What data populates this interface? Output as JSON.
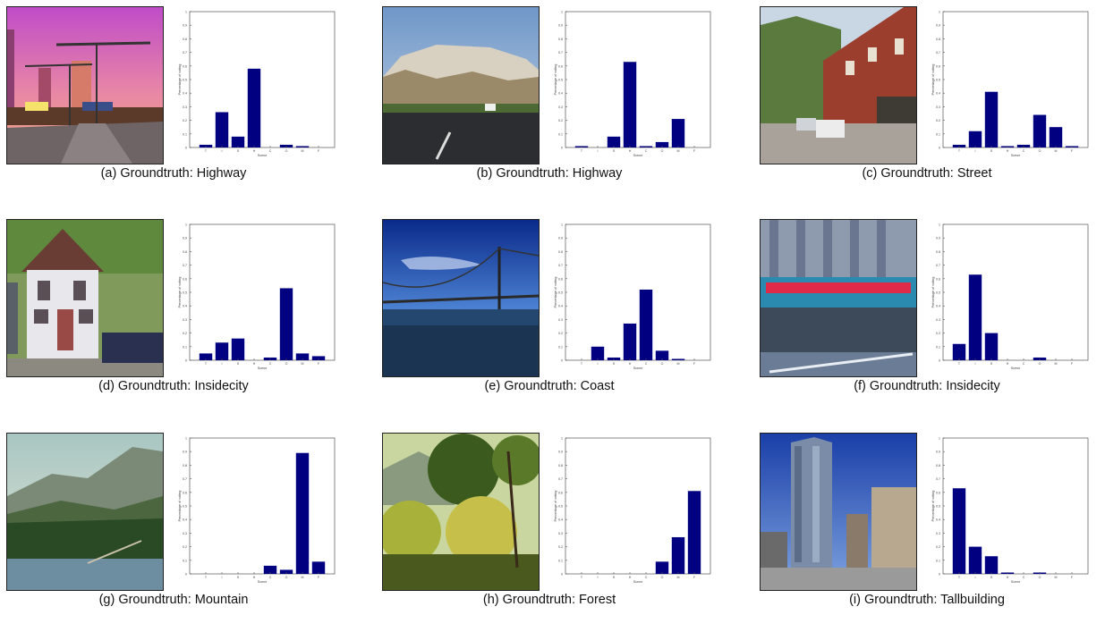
{
  "chart_data": [
    {
      "type": "bar",
      "panel": "a",
      "caption_label": "(a) Groundtruth: ",
      "caption_class": "Highway",
      "categories": [
        "T",
        "I",
        "S",
        "H",
        "C",
        "O",
        "M",
        "F"
      ],
      "values": [
        0.02,
        0.26,
        0.08,
        0.58,
        0.0,
        0.02,
        0.01,
        0.0
      ],
      "xlabel": "Scene",
      "ylabel": "Percentage of voting",
      "ylim": [
        0,
        1
      ],
      "ytick_labels": [
        "0",
        "0.1",
        "0.2",
        "0.3",
        "0.4",
        "0.5",
        "0.6",
        "0.7",
        "0.8",
        "0.9",
        "1"
      ]
    },
    {
      "type": "bar",
      "panel": "b",
      "caption_label": "(b) Groundtruth: ",
      "caption_class": "Highway",
      "categories": [
        "T",
        "I",
        "S",
        "H",
        "C",
        "O",
        "M",
        "F"
      ],
      "values": [
        0.01,
        0.0,
        0.08,
        0.63,
        0.01,
        0.04,
        0.21,
        0.0
      ],
      "xlabel": "Scene",
      "ylabel": "Percentage of voting",
      "ylim": [
        0,
        1
      ],
      "ytick_labels": [
        "0",
        "0.1",
        "0.2",
        "0.3",
        "0.4",
        "0.5",
        "0.6",
        "0.7",
        "0.8",
        "0.9",
        "1"
      ]
    },
    {
      "type": "bar",
      "panel": "c",
      "caption_label": "(c) Groundtruth: ",
      "caption_class": "Street",
      "categories": [
        "T",
        "I",
        "S",
        "H",
        "C",
        "O",
        "M",
        "F"
      ],
      "values": [
        0.02,
        0.12,
        0.41,
        0.01,
        0.02,
        0.24,
        0.15,
        0.01
      ],
      "xlabel": "Scene",
      "ylabel": "Percentage of voting",
      "ylim": [
        0,
        1
      ],
      "ytick_labels": [
        "0",
        "0.1",
        "0.2",
        "0.3",
        "0.4",
        "0.5",
        "0.6",
        "0.7",
        "0.8",
        "0.9",
        "1"
      ]
    },
    {
      "type": "bar",
      "panel": "d",
      "caption_label": "(d) Groundtruth: ",
      "caption_class": "Insidecity",
      "categories": [
        "T",
        "I",
        "S",
        "H",
        "C",
        "O",
        "M",
        "F"
      ],
      "values": [
        0.05,
        0.13,
        0.16,
        0.0,
        0.02,
        0.53,
        0.05,
        0.03
      ],
      "xlabel": "Scene",
      "ylabel": "Percentage of voting",
      "ylim": [
        0,
        1
      ],
      "ytick_labels": [
        "0",
        "0.1",
        "0.2",
        "0.3",
        "0.4",
        "0.5",
        "0.6",
        "0.7",
        "0.8",
        "0.9",
        "1"
      ]
    },
    {
      "type": "bar",
      "panel": "e",
      "caption_label": "(e) Groundtruth: ",
      "caption_class": "Coast",
      "categories": [
        "T",
        "I",
        "S",
        "H",
        "C",
        "O",
        "M",
        "F"
      ],
      "values": [
        0.0,
        0.1,
        0.02,
        0.27,
        0.52,
        0.07,
        0.01,
        0.0
      ],
      "xlabel": "Scene",
      "ylabel": "Percentage of voting",
      "ylim": [
        0,
        1
      ],
      "ytick_labels": [
        "0",
        "0.1",
        "0.2",
        "0.3",
        "0.4",
        "0.5",
        "0.6",
        "0.7",
        "0.8",
        "0.9",
        "1"
      ]
    },
    {
      "type": "bar",
      "panel": "f",
      "caption_label": "(f) Groundtruth: ",
      "caption_class": "Insidecity",
      "categories": [
        "T",
        "I",
        "S",
        "H",
        "C",
        "O",
        "M",
        "F"
      ],
      "values": [
        0.12,
        0.63,
        0.2,
        0.0,
        0.0,
        0.02,
        0.0,
        0.0
      ],
      "xlabel": "Scene",
      "ylabel": "Percentage of voting",
      "ylim": [
        0,
        1
      ],
      "ytick_labels": [
        "0",
        "0.1",
        "0.2",
        "0.3",
        "0.4",
        "0.5",
        "0.6",
        "0.7",
        "0.8",
        "0.9",
        "1"
      ]
    },
    {
      "type": "bar",
      "panel": "g",
      "caption_label": "(g) Groundtruth: ",
      "caption_class": "Mountain",
      "categories": [
        "T",
        "I",
        "S",
        "H",
        "C",
        "O",
        "M",
        "F"
      ],
      "values": [
        0.0,
        0.0,
        0.0,
        0.0,
        0.06,
        0.03,
        0.89,
        0.09
      ],
      "xlabel": "Scene",
      "ylabel": "Percentage of voting",
      "ylim": [
        0,
        1
      ],
      "ytick_labels": [
        "0",
        "0.1",
        "0.2",
        "0.3",
        "0.4",
        "0.5",
        "0.6",
        "0.7",
        "0.8",
        "0.9",
        "1"
      ]
    },
    {
      "type": "bar",
      "panel": "h",
      "caption_label": "(h) Groundtruth: ",
      "caption_class": "Forest",
      "categories": [
        "T",
        "I",
        "S",
        "H",
        "C",
        "O",
        "M",
        "F"
      ],
      "values": [
        0.0,
        0.0,
        0.0,
        0.0,
        0.0,
        0.09,
        0.27,
        0.61
      ],
      "xlabel": "Scene",
      "ylabel": "Percentage of voting",
      "ylim": [
        0,
        1
      ],
      "ytick_labels": [
        "0",
        "0.1",
        "0.2",
        "0.3",
        "0.4",
        "0.5",
        "0.6",
        "0.7",
        "0.8",
        "0.9",
        "1"
      ]
    },
    {
      "type": "bar",
      "panel": "i",
      "caption_label": "(i) Groundtruth: ",
      "caption_class": "Tallbuilding",
      "categories": [
        "T",
        "I",
        "S",
        "H",
        "C",
        "O",
        "M",
        "F"
      ],
      "values": [
        0.63,
        0.2,
        0.13,
        0.01,
        0.0,
        0.01,
        0.0,
        0.0
      ],
      "xlabel": "Scene",
      "ylabel": "Percentage of voting",
      "ylim": [
        0,
        1
      ],
      "ytick_labels": [
        "0",
        "0.1",
        "0.2",
        "0.3",
        "0.4",
        "0.5",
        "0.6",
        "0.7",
        "0.8",
        "0.9",
        "1"
      ]
    }
  ],
  "style": {
    "bar_color": "#000080",
    "axis_color": "#555555",
    "caption_color": "#111111"
  }
}
